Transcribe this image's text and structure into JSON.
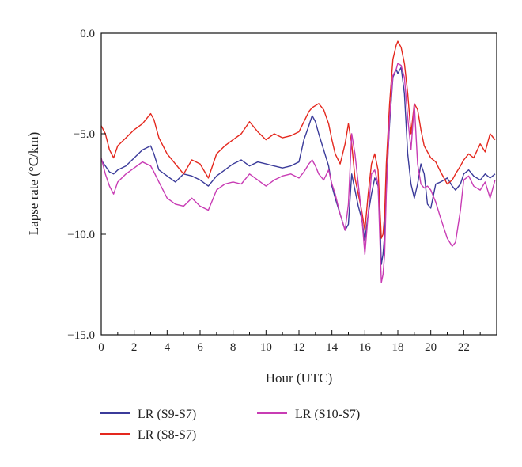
{
  "chart_data": {
    "type": "line",
    "title": "",
    "xlabel": "Hour (UTC)",
    "ylabel": "Lapse rate (°C/km)",
    "xlim": [
      0,
      24
    ],
    "ylim": [
      -15,
      0
    ],
    "xticks": [
      0,
      2,
      4,
      6,
      8,
      10,
      12,
      14,
      16,
      18,
      20,
      22
    ],
    "xtick_labels": [
      "0",
      "2",
      "4",
      "6",
      "8",
      "10",
      "12",
      "14",
      "16",
      "18",
      "20",
      "22"
    ],
    "yticks": [
      0,
      -5,
      -10,
      -15
    ],
    "ytick_labels": [
      "0.0",
      "−5.0",
      "−10.0",
      "−15.0"
    ],
    "grid": false,
    "legend_position": "bottom",
    "series": [
      {
        "name": "LR (S9-S7)",
        "color": "#3b3b9a",
        "x": [
          0,
          0.25,
          0.5,
          0.75,
          1,
          1.5,
          2,
          2.5,
          3,
          3.2,
          3.5,
          4,
          4.5,
          5,
          5.5,
          6,
          6.5,
          7,
          7.5,
          8,
          8.5,
          9,
          9.5,
          10,
          10.5,
          11,
          11.5,
          12,
          12.3,
          12.6,
          12.8,
          13,
          13.2,
          13.5,
          13.8,
          14,
          14.2,
          14.5,
          14.8,
          15,
          15.2,
          15.4,
          15.6,
          15.8,
          16,
          16.2,
          16.4,
          16.6,
          16.8,
          16.9,
          17,
          17.1,
          17.2,
          17.3,
          17.5,
          17.7,
          17.9,
          18,
          18.2,
          18.4,
          18.6,
          18.8,
          19,
          19.2,
          19.4,
          19.6,
          19.8,
          20,
          20.3,
          20.6,
          21,
          21.3,
          21.5,
          21.8,
          22,
          22.3,
          22.6,
          23,
          23.3,
          23.6,
          23.9
        ],
        "values": [
          -6.3,
          -6.6,
          -6.9,
          -7.0,
          -6.8,
          -6.6,
          -6.2,
          -5.8,
          -5.6,
          -6.0,
          -6.8,
          -7.1,
          -7.4,
          -7.0,
          -7.1,
          -7.3,
          -7.6,
          -7.1,
          -6.8,
          -6.5,
          -6.3,
          -6.6,
          -6.4,
          -6.5,
          -6.6,
          -6.7,
          -6.6,
          -6.4,
          -5.3,
          -4.6,
          -4.1,
          -4.4,
          -5.0,
          -5.8,
          -6.6,
          -7.6,
          -8.2,
          -9.0,
          -9.8,
          -9.5,
          -7.0,
          -7.8,
          -8.6,
          -9.2,
          -10.3,
          -9.0,
          -8.0,
          -7.2,
          -7.6,
          -9.0,
          -11.5,
          -11.0,
          -10.0,
          -7.5,
          -4.5,
          -2.2,
          -1.8,
          -2.0,
          -1.7,
          -3.0,
          -6.0,
          -7.5,
          -8.2,
          -7.5,
          -6.5,
          -7.0,
          -8.5,
          -8.7,
          -7.5,
          -7.4,
          -7.2,
          -7.6,
          -7.8,
          -7.5,
          -7.0,
          -6.8,
          -7.1,
          -7.3,
          -7.0,
          -7.2,
          -7.0
        ]
      },
      {
        "name": "LR (S8-S7)",
        "color": "#e4281e",
        "x": [
          0,
          0.25,
          0.5,
          0.75,
          1,
          1.5,
          2,
          2.5,
          3,
          3.2,
          3.5,
          4,
          4.5,
          5,
          5.5,
          6,
          6.5,
          7,
          7.5,
          8,
          8.5,
          9,
          9.5,
          10,
          10.5,
          11,
          11.5,
          12,
          12.3,
          12.6,
          12.8,
          13,
          13.2,
          13.5,
          13.8,
          14,
          14.2,
          14.5,
          14.8,
          15,
          15.2,
          15.4,
          15.6,
          15.8,
          16,
          16.2,
          16.4,
          16.6,
          16.8,
          16.9,
          17,
          17.1,
          17.2,
          17.3,
          17.5,
          17.7,
          17.9,
          18,
          18.2,
          18.4,
          18.6,
          18.8,
          19,
          19.2,
          19.4,
          19.6,
          19.8,
          20,
          20.3,
          20.6,
          21,
          21.3,
          21.5,
          21.8,
          22,
          22.3,
          22.6,
          23,
          23.3,
          23.6,
          23.9
        ],
        "values": [
          -4.6,
          -5.0,
          -5.8,
          -6.2,
          -5.6,
          -5.2,
          -4.8,
          -4.5,
          -4.0,
          -4.3,
          -5.2,
          -6.0,
          -6.5,
          -7.0,
          -6.3,
          -6.5,
          -7.2,
          -6.0,
          -5.6,
          -5.3,
          -5.0,
          -4.4,
          -4.9,
          -5.3,
          -5.0,
          -5.2,
          -5.1,
          -4.9,
          -4.4,
          -3.9,
          -3.7,
          -3.6,
          -3.5,
          -3.8,
          -4.5,
          -5.3,
          -6.0,
          -6.5,
          -5.5,
          -4.5,
          -5.5,
          -7.2,
          -8.0,
          -8.8,
          -9.8,
          -8.0,
          -6.5,
          -6.0,
          -6.8,
          -8.5,
          -10.2,
          -10.0,
          -9.0,
          -6.5,
          -3.5,
          -1.3,
          -0.6,
          -0.4,
          -0.7,
          -1.5,
          -3.0,
          -5.0,
          -3.5,
          -3.8,
          -4.8,
          -5.6,
          -5.9,
          -6.2,
          -6.4,
          -6.9,
          -7.5,
          -7.3,
          -7.0,
          -6.6,
          -6.3,
          -6.0,
          -6.2,
          -5.5,
          -5.9,
          -5.0,
          -5.3
        ]
      },
      {
        "name": "LR (S10-S7)",
        "color": "#c83cb4",
        "x": [
          0,
          0.25,
          0.5,
          0.75,
          1,
          1.5,
          2,
          2.5,
          3,
          3.2,
          3.5,
          4,
          4.5,
          5,
          5.5,
          6,
          6.5,
          7,
          7.5,
          8,
          8.5,
          9,
          9.5,
          10,
          10.5,
          11,
          11.5,
          12,
          12.3,
          12.6,
          12.8,
          13,
          13.2,
          13.5,
          13.8,
          14,
          14.2,
          14.5,
          14.8,
          15,
          15.2,
          15.4,
          15.6,
          15.8,
          16,
          16.2,
          16.4,
          16.6,
          16.8,
          16.9,
          17,
          17.1,
          17.2,
          17.3,
          17.5,
          17.7,
          17.9,
          18,
          18.2,
          18.4,
          18.6,
          18.8,
          19,
          19.2,
          19.4,
          19.6,
          19.8,
          20,
          20.3,
          20.6,
          21,
          21.3,
          21.5,
          21.8,
          22,
          22.3,
          22.6,
          23,
          23.3,
          23.6,
          23.9
        ],
        "values": [
          -6.2,
          -7.0,
          -7.6,
          -8.0,
          -7.4,
          -7.0,
          -6.7,
          -6.4,
          -6.6,
          -6.9,
          -7.4,
          -8.2,
          -8.5,
          -8.6,
          -8.2,
          -8.6,
          -8.8,
          -7.8,
          -7.5,
          -7.4,
          -7.5,
          -7.0,
          -7.3,
          -7.6,
          -7.3,
          -7.1,
          -7.0,
          -7.2,
          -6.9,
          -6.5,
          -6.3,
          -6.6,
          -7.0,
          -7.3,
          -6.8,
          -7.5,
          -8.0,
          -9.0,
          -9.8,
          -8.5,
          -5.0,
          -6.0,
          -7.5,
          -9.0,
          -11.0,
          -9.0,
          -7.0,
          -6.8,
          -7.5,
          -10.0,
          -12.4,
          -12.0,
          -11.0,
          -8.0,
          -4.2,
          -2.1,
          -1.8,
          -1.5,
          -1.6,
          -2.2,
          -4.2,
          -5.8,
          -3.5,
          -6.5,
          -7.5,
          -7.7,
          -7.6,
          -7.8,
          -8.4,
          -9.2,
          -10.2,
          -10.6,
          -10.4,
          -8.8,
          -7.3,
          -7.1,
          -7.6,
          -7.8,
          -7.4,
          -8.2,
          -7.3
        ]
      }
    ]
  }
}
